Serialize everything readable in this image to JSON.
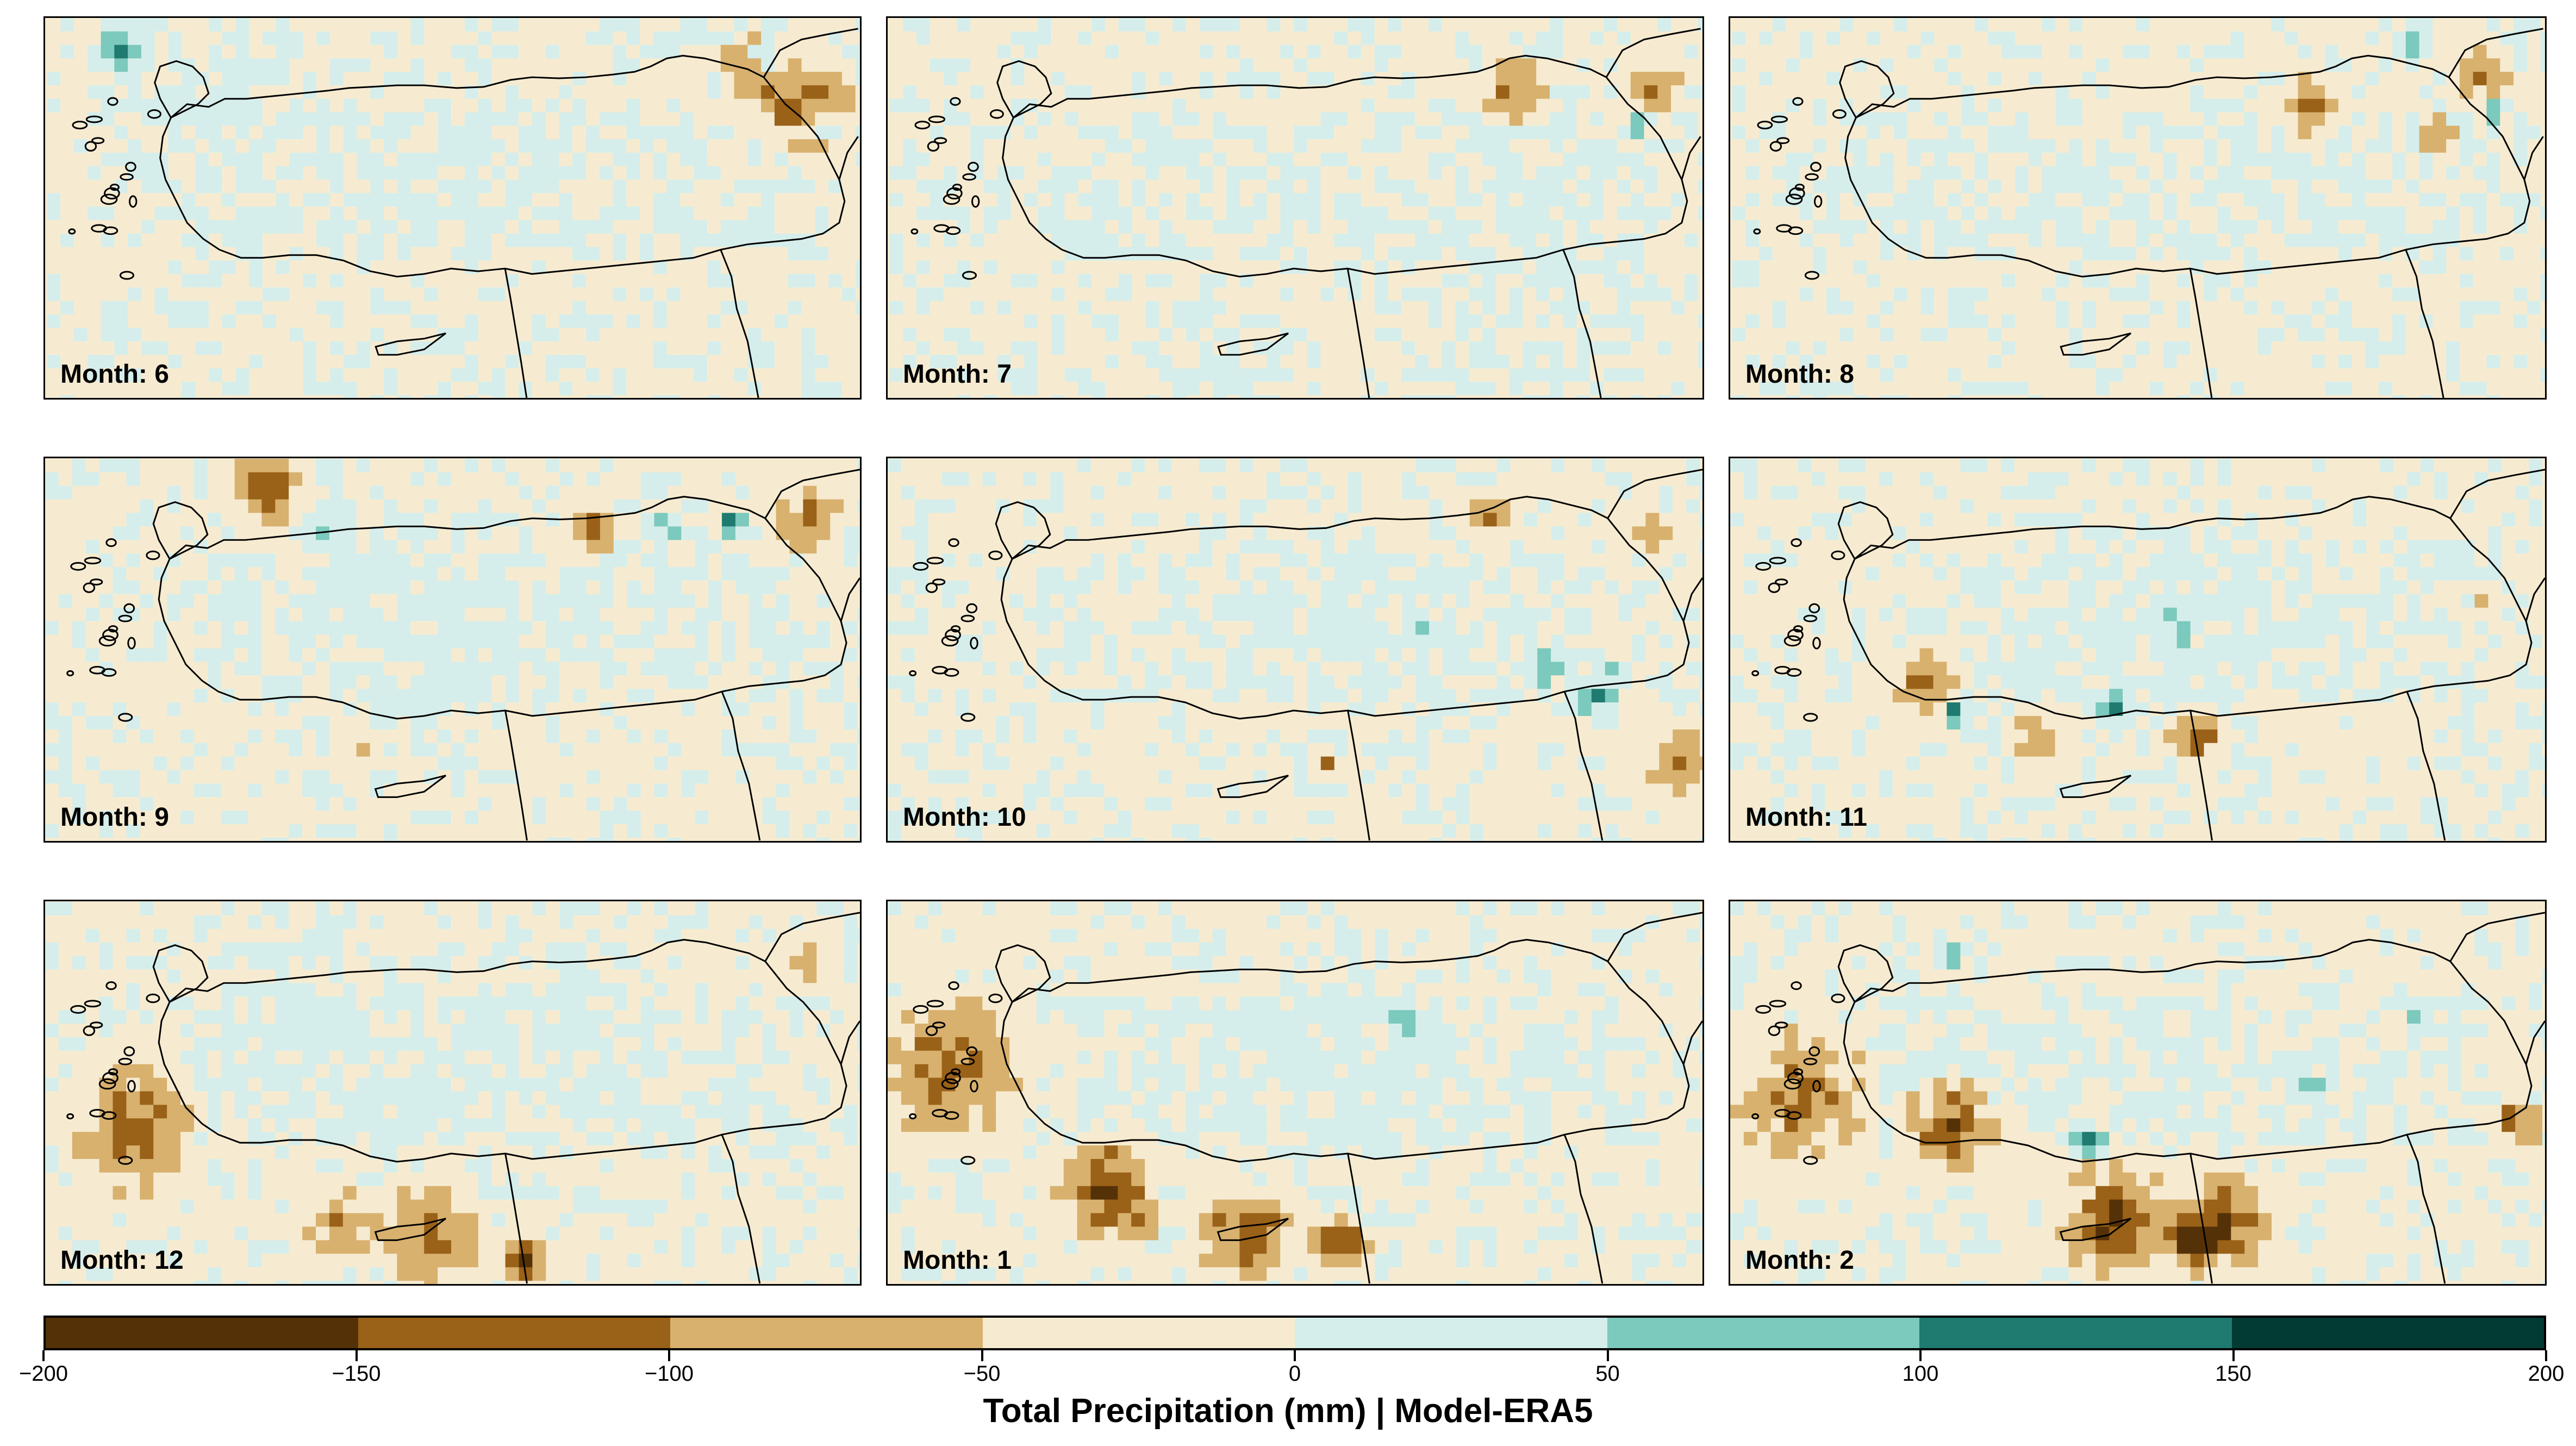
{
  "panels": [
    {
      "label": "Month: 6"
    },
    {
      "label": "Month: 7"
    },
    {
      "label": "Month: 8"
    },
    {
      "label": "Month: 9"
    },
    {
      "label": "Month: 10"
    },
    {
      "label": "Month: 11"
    },
    {
      "label": "Month: 12"
    },
    {
      "label": "Month: 1"
    },
    {
      "label": "Month: 2"
    }
  ],
  "colorbar": {
    "title": "Total Precipitation (mm) | Model-ERA5",
    "ticks": [
      "−200",
      "−150",
      "−100",
      "−50",
      "0",
      "50",
      "100",
      "150",
      "200"
    ],
    "bins": [
      {
        "range": "-200 to -150",
        "color": "#553108"
      },
      {
        "range": "-150 to -100",
        "color": "#9a6118"
      },
      {
        "range": "-100 to -50",
        "color": "#d8b16e"
      },
      {
        "range": "-50 to 0",
        "color": "#f6ebd1"
      },
      {
        "range": "0 to 50",
        "color": "#d6eeeb"
      },
      {
        "range": "50 to 100",
        "color": "#7cc9bd"
      },
      {
        "range": "100 to 150",
        "color": "#1f7a70"
      },
      {
        "range": "150 to 200",
        "color": "#013b33"
      }
    ]
  }
}
